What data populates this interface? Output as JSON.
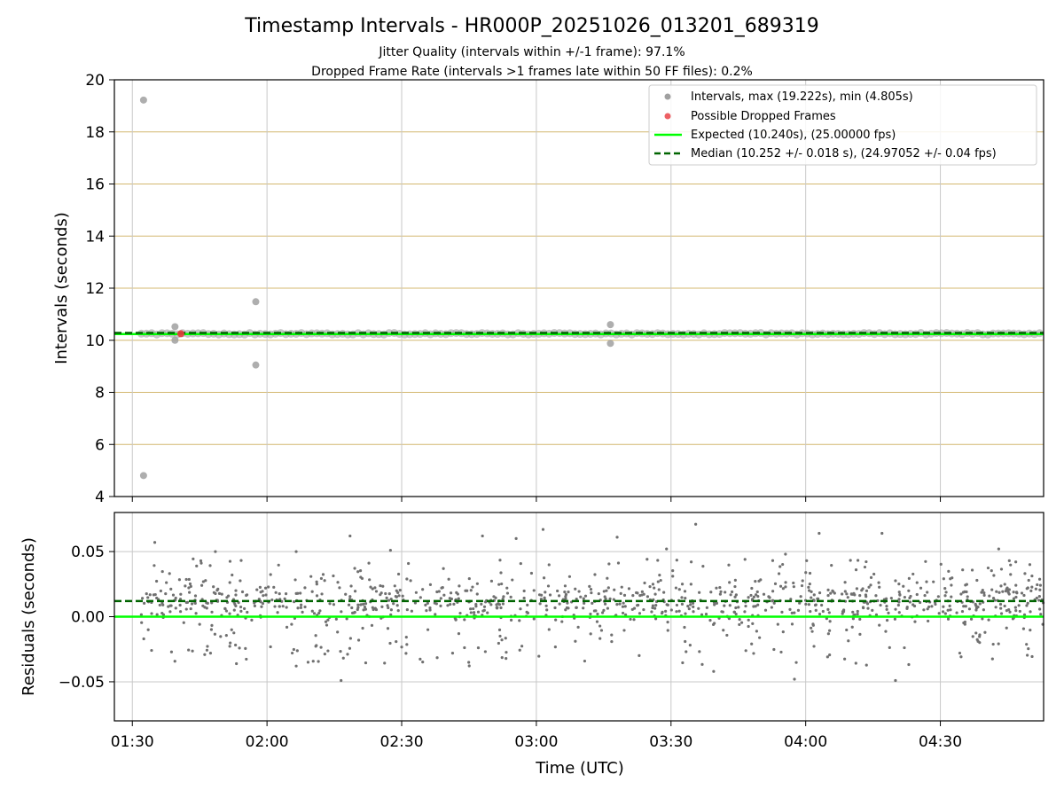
{
  "title": "Timestamp Intervals - HR000P_20251026_013201_689319",
  "subtitle_jitter": "Jitter Quality (intervals within +/-1 frame): 97.1%",
  "subtitle_dropped": "Dropped Frame Rate (intervals >1 frames late within 50 FF files): 0.2%",
  "colors": {
    "intervals": "#a0a0a0",
    "dropped": "#e8383d",
    "expected": "#00ff00",
    "median": "#006400",
    "residual_points": "#707070",
    "hgrid_top": "#d4b870",
    "grid": "#c8c8c8"
  },
  "chart_data": [
    {
      "type": "scatter",
      "name": "intervals",
      "ylabel": "Intervals (seconds)",
      "xlabel": "",
      "xlim": [
        86,
        293
      ],
      "ylim": [
        4,
        20
      ],
      "yticks": [
        4,
        6,
        8,
        10,
        12,
        14,
        16,
        18,
        20
      ],
      "xticks": [
        90,
        120,
        150,
        180,
        210,
        240,
        270
      ],
      "grid": true,
      "legend_position": "top-right",
      "legend": [
        "Intervals, max (19.222s), min (4.805s)",
        "Possible Dropped Frames",
        "Expected (10.240s), (25.00000 fps)",
        "Median (10.252 +/- 0.018 s), (24.97052 +/- 0.04 fps)"
      ],
      "expected": 10.24,
      "median": 10.252,
      "band_start": 92,
      "band_end": 293,
      "band_value": 10.25,
      "outliers": [
        {
          "x": 92.5,
          "y": 19.222
        },
        {
          "x": 92.5,
          "y": 4.805
        },
        {
          "x": 99.5,
          "y": 10.52
        },
        {
          "x": 99.5,
          "y": 10.0
        },
        {
          "x": 117.5,
          "y": 11.48
        },
        {
          "x": 117.5,
          "y": 9.05
        },
        {
          "x": 196.5,
          "y": 10.6
        },
        {
          "x": 196.5,
          "y": 9.88
        }
      ],
      "dropped_frames": [
        {
          "x": 100.8,
          "y": 10.25
        }
      ]
    },
    {
      "type": "scatter",
      "name": "residuals",
      "ylabel": "Residuals (seconds)",
      "xlabel": "Time (UTC)",
      "xlim": [
        86,
        293
      ],
      "ylim": [
        -0.08,
        0.08
      ],
      "yticks": [
        -0.05,
        0.0,
        0.05
      ],
      "ytick_labels": [
        "−0.05",
        "0.00",
        "0.05"
      ],
      "xticks": [
        90,
        120,
        150,
        180,
        210,
        240,
        270
      ],
      "xtick_labels": [
        "01:30",
        "02:00",
        "02:30",
        "03:00",
        "03:30",
        "04:00",
        "04:30"
      ],
      "grid": true,
      "expected": 0.0,
      "median": 0.012,
      "x_start": 92,
      "x_end": 293,
      "n_points": 1100,
      "distribution": {
        "center": 0.012,
        "core_spread": 0.008,
        "wide_min": -0.038,
        "wide_max": 0.045
      },
      "notable_points": [
        {
          "x": 95.0,
          "y": 0.057
        },
        {
          "x": 108.5,
          "y": 0.05
        },
        {
          "x": 126.5,
          "y": 0.05
        },
        {
          "x": 138.5,
          "y": 0.062
        },
        {
          "x": 147.5,
          "y": 0.051
        },
        {
          "x": 168.0,
          "y": 0.062
        },
        {
          "x": 175.5,
          "y": 0.06
        },
        {
          "x": 181.5,
          "y": 0.067
        },
        {
          "x": 198.0,
          "y": 0.061
        },
        {
          "x": 209.0,
          "y": 0.052
        },
        {
          "x": 215.5,
          "y": 0.071
        },
        {
          "x": 235.5,
          "y": 0.048
        },
        {
          "x": 243.0,
          "y": 0.064
        },
        {
          "x": 257.0,
          "y": 0.064
        },
        {
          "x": 283.0,
          "y": 0.052
        },
        {
          "x": 136.5,
          "y": -0.049
        },
        {
          "x": 219.5,
          "y": -0.042
        },
        {
          "x": 237.5,
          "y": -0.048
        },
        {
          "x": 260.0,
          "y": -0.049
        }
      ]
    }
  ]
}
